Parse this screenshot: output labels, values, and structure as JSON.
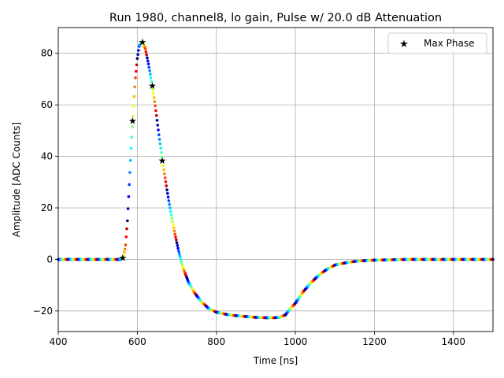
{
  "chart_data": {
    "type": "scatter",
    "title": "Run 1980, channel8, lo gain, Pulse w/ 20.0 dB Attenuation",
    "xlabel": "Time [ns]",
    "ylabel": "Amplitude [ADC Counts]",
    "xlim": [
      400,
      1500
    ],
    "ylim": [
      -28,
      90
    ],
    "xticks": [
      400,
      600,
      800,
      1000,
      1200,
      1400
    ],
    "yticks": [
      -20,
      0,
      20,
      40,
      60,
      80
    ],
    "xtick_labels": [
      "400",
      "600",
      "800",
      "1000",
      "1200",
      "1400"
    ],
    "ytick_labels": [
      "−20",
      "0",
      "20",
      "40",
      "60",
      "80"
    ],
    "grid": true,
    "legend": {
      "placement": "top-right",
      "entries": [
        "Max Phase"
      ]
    },
    "colormap": "jet",
    "pulse_curve": [
      [
        400,
        0
      ],
      [
        560,
        0
      ],
      [
        565,
        1
      ],
      [
        570,
        5
      ],
      [
        575,
        15
      ],
      [
        580,
        30
      ],
      [
        585,
        45
      ],
      [
        590,
        58
      ],
      [
        595,
        70
      ],
      [
        600,
        78
      ],
      [
        605,
        83
      ],
      [
        612,
        84.5
      ],
      [
        620,
        82
      ],
      [
        628,
        76
      ],
      [
        635,
        70
      ],
      [
        645,
        60
      ],
      [
        655,
        48
      ],
      [
        665,
        37
      ],
      [
        675,
        27
      ],
      [
        685,
        18
      ],
      [
        695,
        10
      ],
      [
        705,
        3
      ],
      [
        715,
        -3
      ],
      [
        730,
        -9
      ],
      [
        745,
        -13
      ],
      [
        760,
        -16
      ],
      [
        780,
        -19
      ],
      [
        800,
        -20.5
      ],
      [
        830,
        -21.5
      ],
      [
        860,
        -22
      ],
      [
        900,
        -22.5
      ],
      [
        940,
        -22.7
      ],
      [
        960,
        -22.5
      ],
      [
        975,
        -21.5
      ],
      [
        985,
        -19.5
      ],
      [
        1000,
        -17
      ],
      [
        1020,
        -12.5
      ],
      [
        1040,
        -9
      ],
      [
        1060,
        -6
      ],
      [
        1080,
        -3.8
      ],
      [
        1100,
        -2.2
      ],
      [
        1130,
        -1.2
      ],
      [
        1160,
        -0.6
      ],
      [
        1200,
        -0.3
      ],
      [
        1250,
        -0.1
      ],
      [
        1300,
        0
      ],
      [
        1500,
        0
      ]
    ],
    "max_phase_points": [
      {
        "x": 563,
        "y": 0.8
      },
      {
        "x": 588,
        "y": 54
      },
      {
        "x": 613,
        "y": 84.5
      },
      {
        "x": 638,
        "y": 67.5
      },
      {
        "x": 663,
        "y": 38.5
      }
    ]
  }
}
